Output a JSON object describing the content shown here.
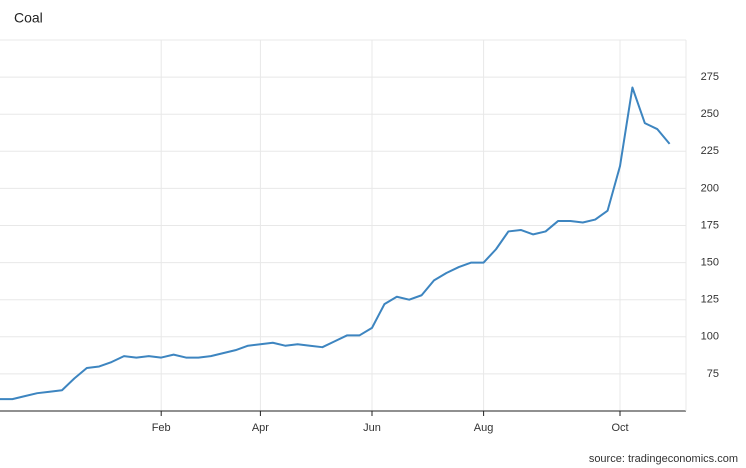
{
  "chart_data": {
    "type": "line",
    "title": "Coal",
    "source": "source: tradingeconomics.com",
    "categories": [
      null,
      null,
      null,
      null,
      null,
      null,
      null,
      null,
      null,
      null,
      null,
      null,
      null,
      "Feb",
      null,
      null,
      null,
      null,
      null,
      null,
      null,
      "Apr",
      null,
      null,
      null,
      null,
      null,
      null,
      null,
      null,
      "Jun",
      null,
      null,
      null,
      null,
      null,
      null,
      null,
      null,
      "Aug",
      null,
      null,
      null,
      null,
      null,
      null,
      null,
      null,
      null,
      null,
      "Oct",
      null,
      null,
      null,
      null
    ],
    "values": [
      58,
      58,
      60,
      62,
      63,
      64,
      72,
      79,
      80,
      83,
      87,
      86,
      87,
      86,
      88,
      86,
      86,
      87,
      89,
      91,
      94,
      95,
      96,
      94,
      95,
      94,
      93,
      97,
      101,
      101,
      106,
      122,
      127,
      125,
      128,
      138,
      143,
      147,
      150,
      150,
      159,
      171,
      172,
      169,
      171,
      178,
      178,
      177,
      179,
      185,
      215,
      268,
      244,
      240,
      230
    ],
    "color": "#3d85c0",
    "ylim": [
      50,
      300
    ],
    "yticks": [
      75,
      100,
      125,
      150,
      175,
      200,
      225,
      250,
      275
    ],
    "grid": true,
    "y_axis_side": "right"
  }
}
